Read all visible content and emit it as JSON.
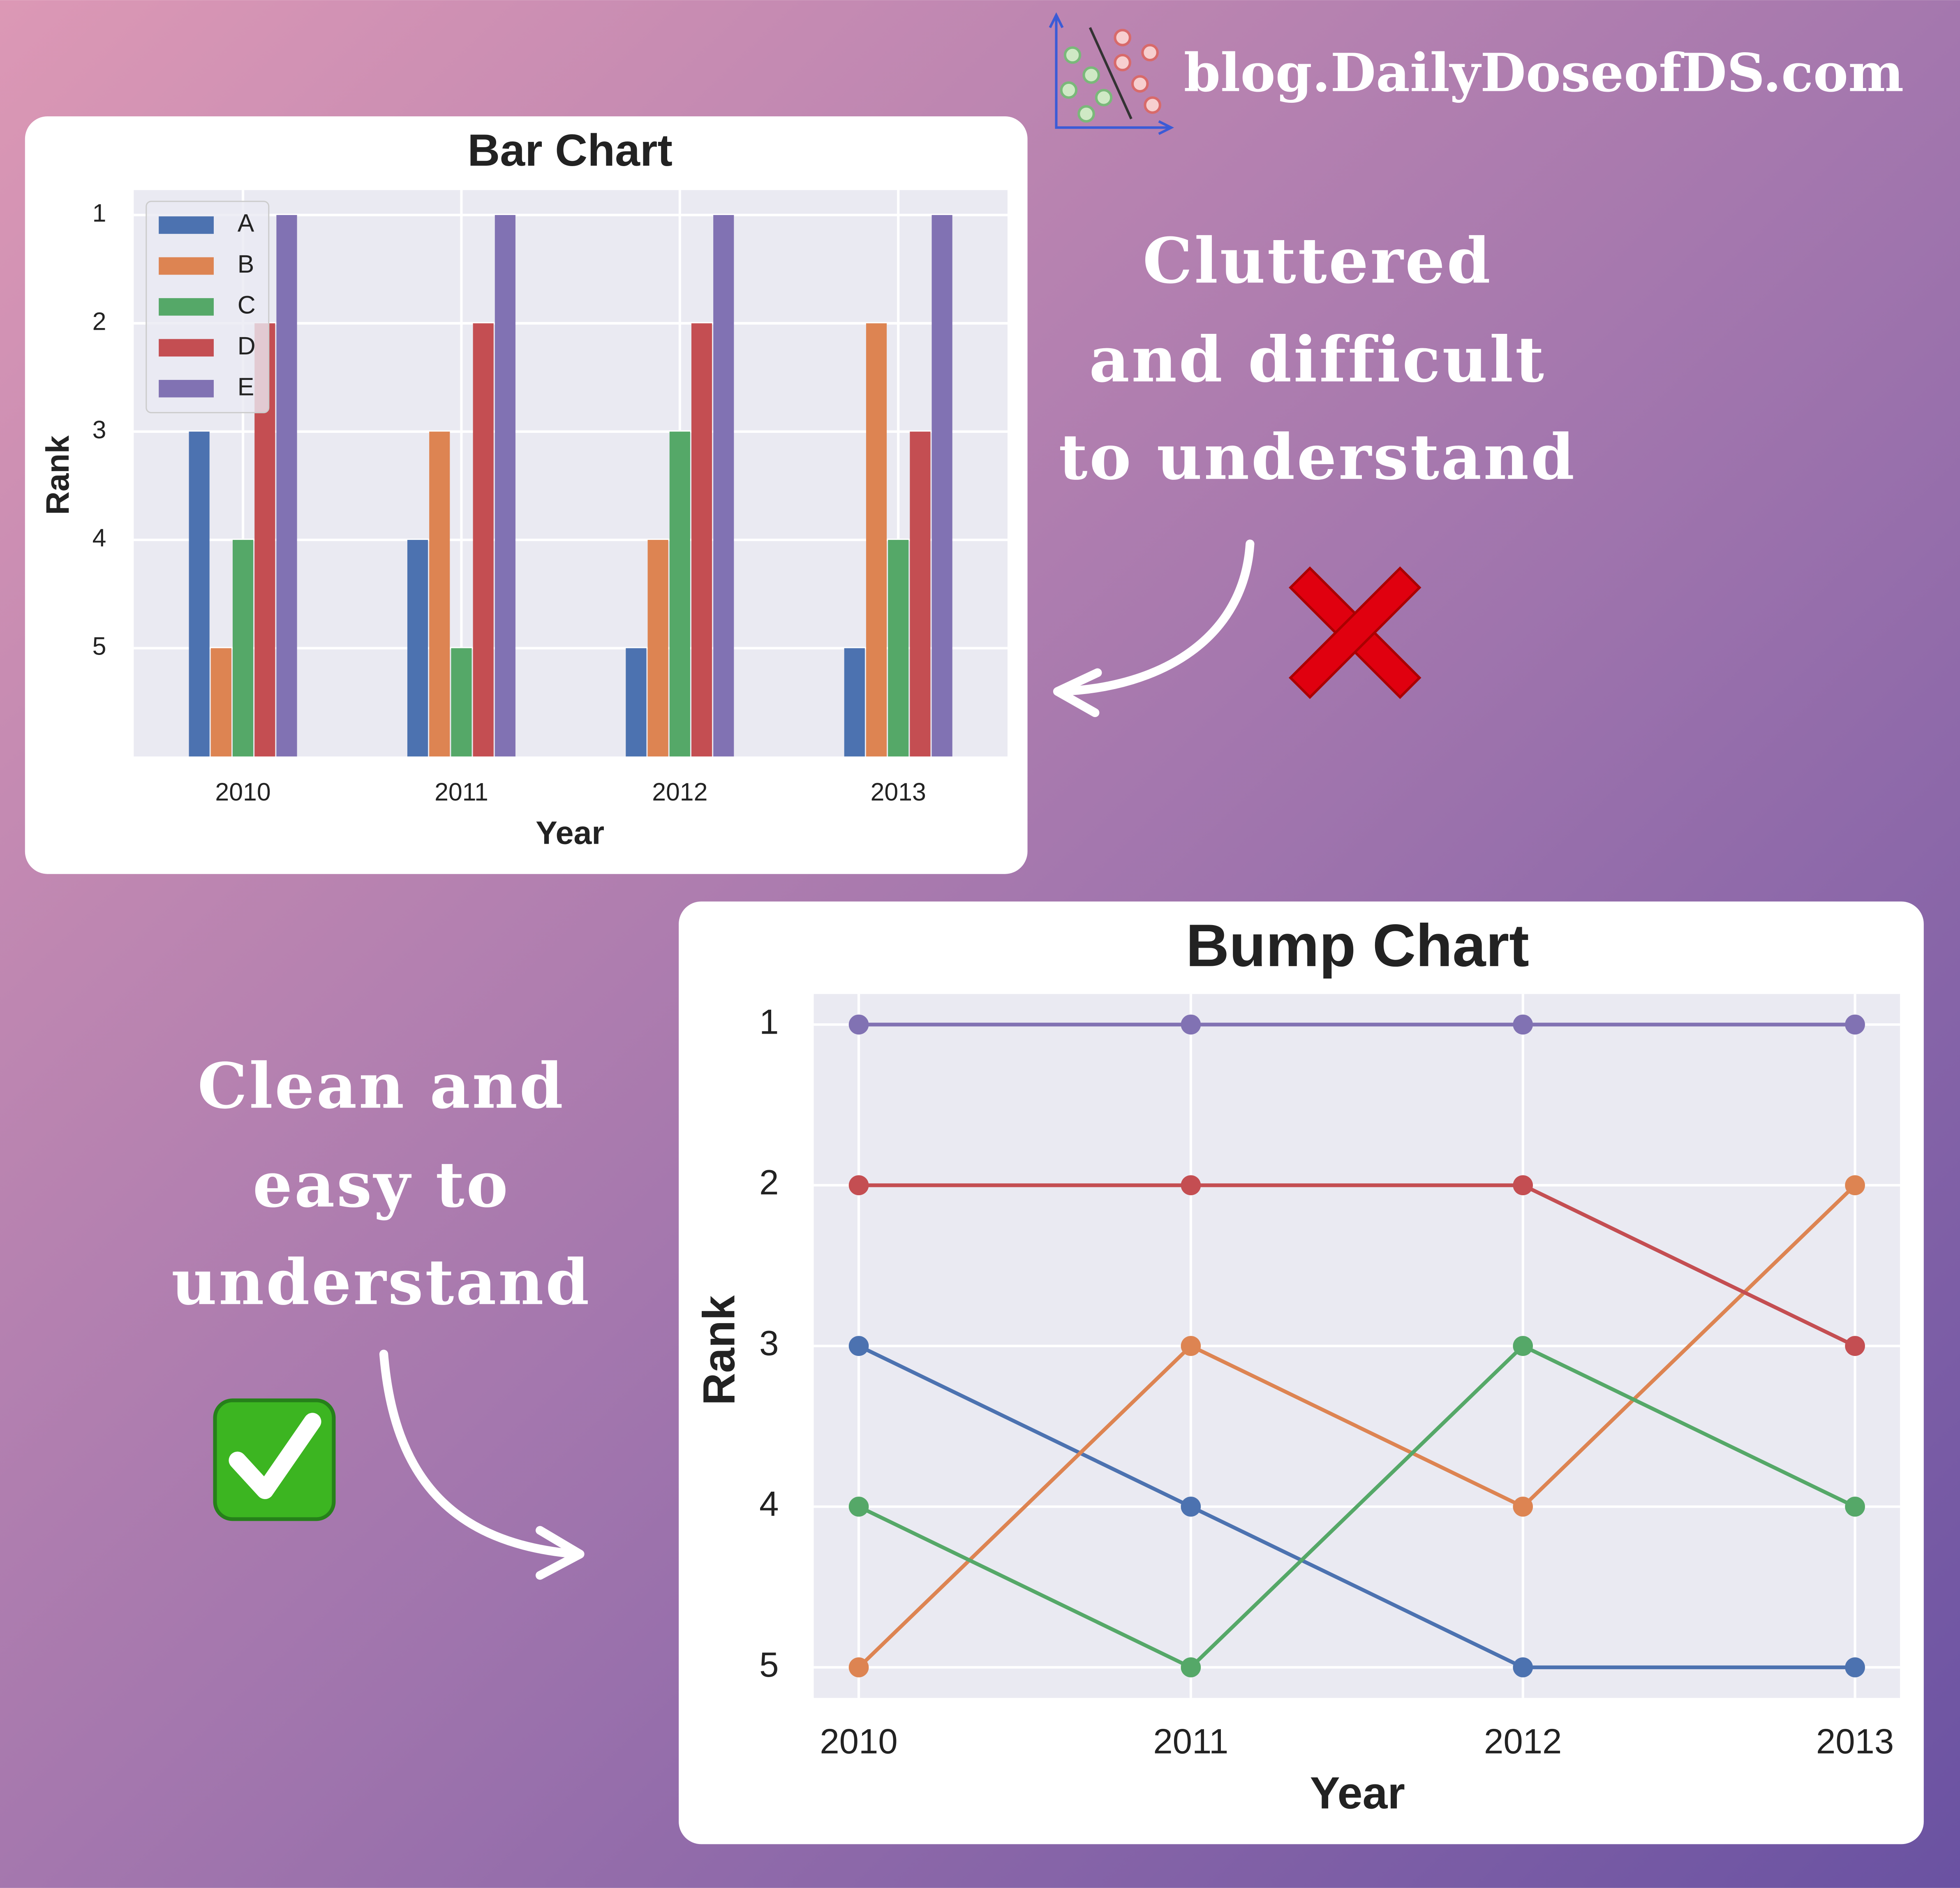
{
  "brand": "blog.DailyDoseofDS.com",
  "annotations": [
    {
      "lines": [
        "Cluttered",
        "and difficult",
        "to understand"
      ]
    },
    {
      "lines": [
        "Clean and",
        "easy to",
        "understand"
      ]
    }
  ],
  "chart_data": [
    {
      "type": "bar",
      "title": "Bar Chart",
      "x_label": "Year",
      "y_label": "Rank",
      "categories": [
        "2010",
        "2011",
        "2012",
        "2013"
      ],
      "series": [
        {
          "name": "A",
          "color": "#4c72b0",
          "values": [
            3,
            4,
            5,
            5
          ]
        },
        {
          "name": "B",
          "color": "#dd8452",
          "values": [
            5,
            3,
            4,
            2
          ]
        },
        {
          "name": "C",
          "color": "#55a868",
          "values": [
            4,
            5,
            3,
            4
          ]
        },
        {
          "name": "D",
          "color": "#c44e52",
          "values": [
            2,
            2,
            2,
            3
          ]
        },
        {
          "name": "E",
          "color": "#8172b3",
          "values": [
            1,
            1,
            1,
            1
          ]
        }
      ],
      "ylim": [
        6,
        0.77
      ],
      "yticks": [
        1,
        2,
        3,
        4,
        5
      ],
      "grid": true,
      "legend": "upper left"
    },
    {
      "type": "line",
      "title": "Bump Chart",
      "x_label": "Year",
      "y_label": "Rank",
      "categories": [
        "2010",
        "2011",
        "2012",
        "2013"
      ],
      "series": [
        {
          "color": "#4c72b0",
          "values": [
            3,
            4,
            5,
            5
          ]
        },
        {
          "color": "#dd8452",
          "values": [
            5,
            3,
            4,
            2
          ]
        },
        {
          "color": "#55a868",
          "values": [
            4,
            5,
            3,
            4
          ]
        },
        {
          "color": "#c44e52",
          "values": [
            2,
            2,
            2,
            3
          ]
        },
        {
          "color": "#8172b3",
          "values": [
            1,
            1,
            1,
            1
          ]
        }
      ],
      "ylim": [
        5.19,
        0.81
      ],
      "yticks": [
        1,
        2,
        3,
        4,
        5
      ],
      "grid": true
    }
  ]
}
